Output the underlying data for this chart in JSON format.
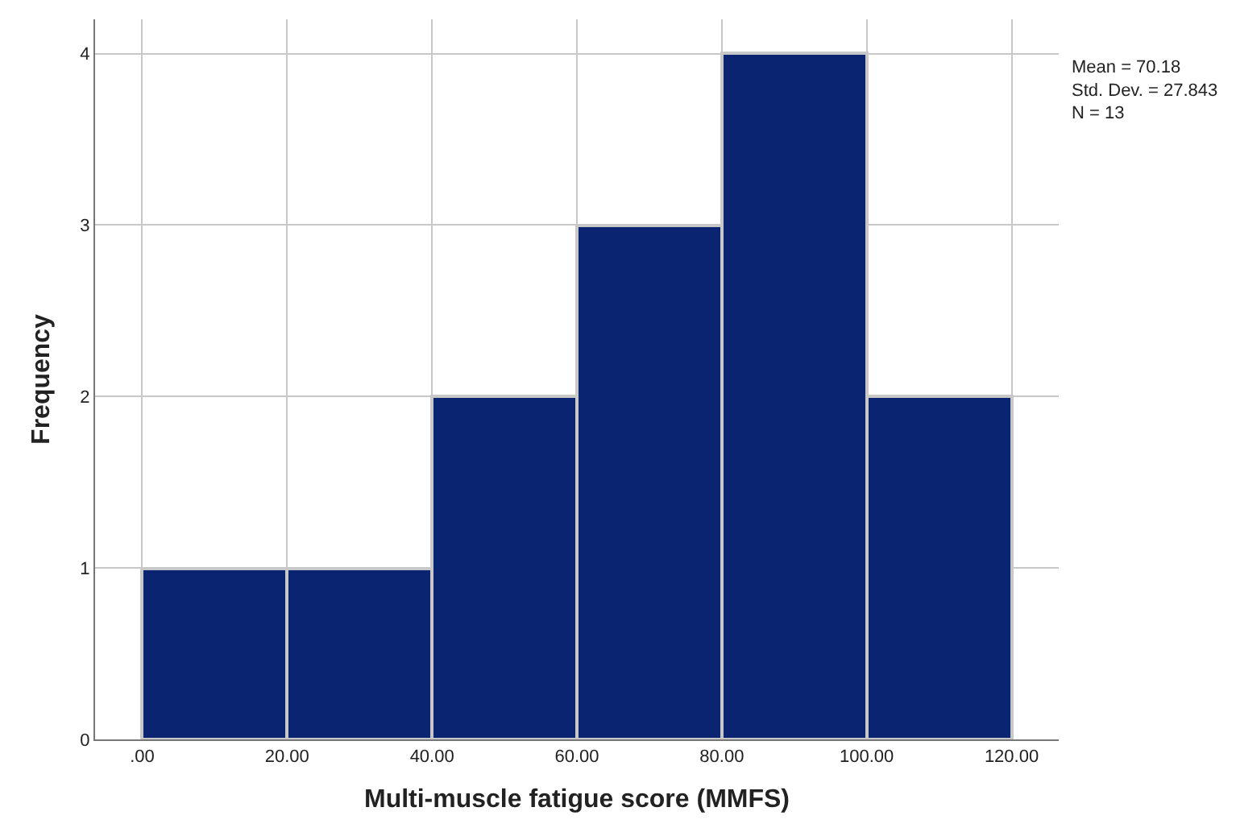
{
  "chart_data": {
    "type": "histogram",
    "xlabel": "Multi-muscle fatigue score (MMFS)",
    "ylabel": "Frequency",
    "bins": [
      0,
      20,
      40,
      60,
      80,
      100,
      120
    ],
    "values": [
      1,
      1,
      2,
      3,
      4,
      2
    ],
    "color": "#0a2472",
    "xlim": [
      -6.5,
      126.5
    ],
    "xticks": [
      {
        "value": 0,
        "label": ".00"
      },
      {
        "value": 20,
        "label": "20.00"
      },
      {
        "value": 40,
        "label": "40.00"
      },
      {
        "value": 60,
        "label": "60.00"
      },
      {
        "value": 80,
        "label": "80.00"
      },
      {
        "value": 100,
        "label": "100.00"
      },
      {
        "value": 120,
        "label": "120.00"
      }
    ],
    "ylim": [
      0,
      4.2
    ],
    "yticks": [
      0,
      1,
      2,
      3,
      4
    ],
    "grid": true,
    "annotations": [
      "Mean = 70.18\nStd. Dev. = 27.843\nN = 13"
    ]
  }
}
